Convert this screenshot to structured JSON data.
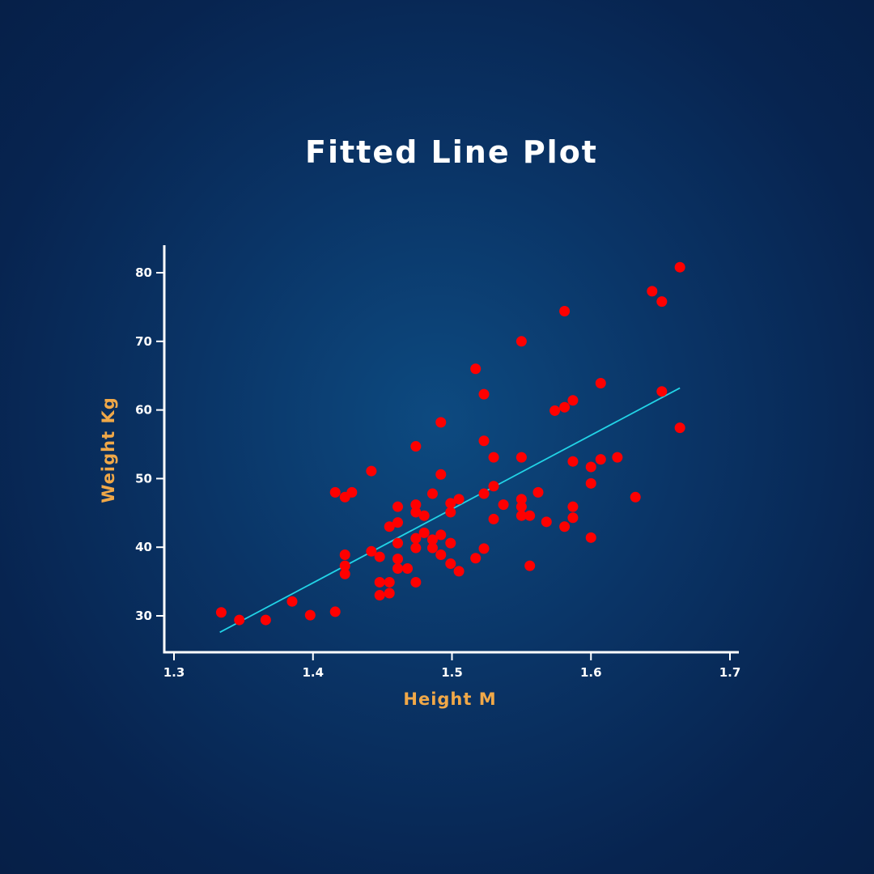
{
  "chart_data": {
    "type": "scatter",
    "title": "Fitted Line Plot",
    "xlabel": "Height M",
    "ylabel": "Weight Kg",
    "xlim": [
      1.3,
      1.7
    ],
    "ylim": [
      25,
      84
    ],
    "xticks": [
      "1.3",
      "1.4",
      "1.5",
      "1.6",
      "1.7"
    ],
    "yticks": [
      "30",
      "40",
      "50",
      "60",
      "70",
      "80"
    ],
    "grid": false,
    "colors": {
      "points": "#ff0000",
      "fit_line": "#22d3e6",
      "axes": "#ffffff",
      "labels": "#f0a848",
      "background": "#0a3466"
    },
    "fit_line": {
      "x": [
        1.333,
        1.664
      ],
      "y": [
        27.6,
        63.2
      ]
    },
    "points": [
      [
        1.334,
        30.5
      ],
      [
        1.347,
        29.4
      ],
      [
        1.366,
        29.4
      ],
      [
        1.385,
        32.1
      ],
      [
        1.398,
        30.1
      ],
      [
        1.416,
        30.6
      ],
      [
        1.416,
        48.0
      ],
      [
        1.423,
        47.3
      ],
      [
        1.428,
        48.0
      ],
      [
        1.423,
        38.9
      ],
      [
        1.423,
        37.3
      ],
      [
        1.423,
        36.1
      ],
      [
        1.442,
        51.1
      ],
      [
        1.442,
        39.4
      ],
      [
        1.448,
        38.6
      ],
      [
        1.448,
        34.9
      ],
      [
        1.448,
        33.0
      ],
      [
        1.455,
        33.3
      ],
      [
        1.455,
        34.9
      ],
      [
        1.455,
        43.0
      ],
      [
        1.461,
        45.9
      ],
      [
        1.461,
        43.6
      ],
      [
        1.461,
        40.6
      ],
      [
        1.461,
        38.3
      ],
      [
        1.461,
        36.9
      ],
      [
        1.468,
        36.9
      ],
      [
        1.474,
        54.7
      ],
      [
        1.474,
        46.2
      ],
      [
        1.474,
        45.1
      ],
      [
        1.474,
        41.3
      ],
      [
        1.474,
        39.9
      ],
      [
        1.474,
        34.9
      ],
      [
        1.48,
        44.6
      ],
      [
        1.48,
        42.1
      ],
      [
        1.486,
        47.8
      ],
      [
        1.486,
        41.1
      ],
      [
        1.486,
        39.9
      ],
      [
        1.492,
        58.2
      ],
      [
        1.492,
        50.6
      ],
      [
        1.492,
        41.8
      ],
      [
        1.492,
        38.9
      ],
      [
        1.499,
        46.4
      ],
      [
        1.499,
        45.1
      ],
      [
        1.499,
        40.6
      ],
      [
        1.499,
        37.6
      ],
      [
        1.505,
        47.0
      ],
      [
        1.505,
        36.5
      ],
      [
        1.517,
        66.0
      ],
      [
        1.517,
        38.4
      ],
      [
        1.523,
        62.3
      ],
      [
        1.523,
        55.5
      ],
      [
        1.523,
        47.8
      ],
      [
        1.523,
        39.8
      ],
      [
        1.53,
        53.1
      ],
      [
        1.53,
        48.9
      ],
      [
        1.53,
        44.1
      ],
      [
        1.537,
        46.2
      ],
      [
        1.55,
        70.0
      ],
      [
        1.55,
        53.1
      ],
      [
        1.55,
        47.0
      ],
      [
        1.55,
        45.9
      ],
      [
        1.55,
        44.6
      ],
      [
        1.556,
        44.6
      ],
      [
        1.556,
        37.3
      ],
      [
        1.562,
        48.0
      ],
      [
        1.568,
        43.7
      ],
      [
        1.574,
        59.9
      ],
      [
        1.581,
        74.4
      ],
      [
        1.581,
        60.4
      ],
      [
        1.581,
        43.0
      ],
      [
        1.587,
        61.4
      ],
      [
        1.587,
        52.5
      ],
      [
        1.587,
        45.9
      ],
      [
        1.587,
        44.3
      ],
      [
        1.6,
        51.7
      ],
      [
        1.6,
        49.3
      ],
      [
        1.6,
        41.4
      ],
      [
        1.607,
        63.9
      ],
      [
        1.607,
        52.8
      ],
      [
        1.619,
        53.1
      ],
      [
        1.632,
        47.3
      ],
      [
        1.644,
        77.3
      ],
      [
        1.651,
        75.8
      ],
      [
        1.651,
        62.7
      ],
      [
        1.664,
        80.8
      ],
      [
        1.664,
        57.4
      ]
    ]
  }
}
